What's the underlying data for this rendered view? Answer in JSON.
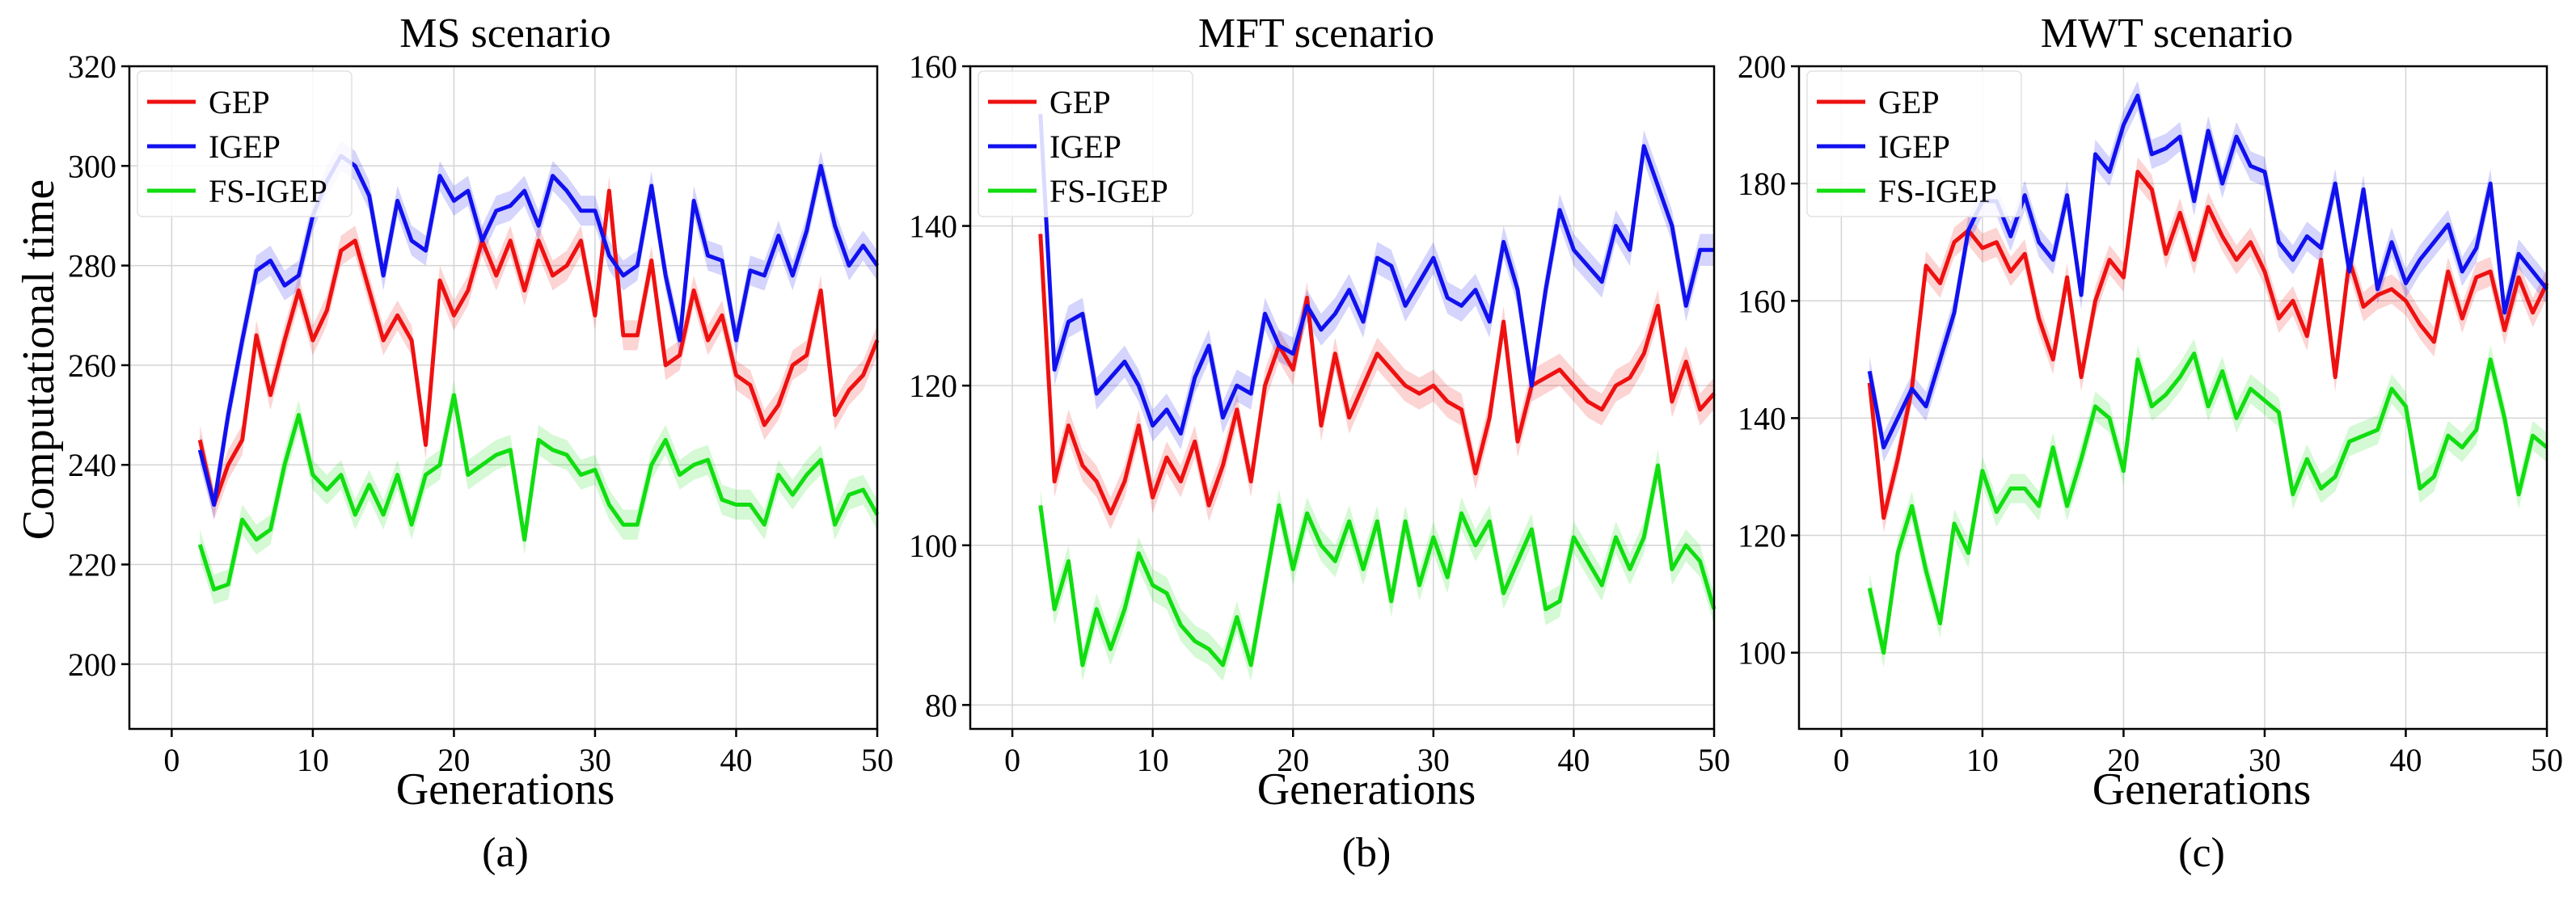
{
  "figure": {
    "ylabel": "Computational time"
  },
  "chart_data": [
    {
      "type": "line",
      "title": "MS scenario",
      "caption": "(a)",
      "xlabel": "Generations",
      "ylabel": "Computational time",
      "xlim": [
        -3,
        50
      ],
      "ylim": [
        187,
        320
      ],
      "xticks": [
        0,
        10,
        20,
        30,
        40,
        50
      ],
      "yticks": [
        200,
        220,
        240,
        260,
        280,
        300,
        320
      ],
      "grid": true,
      "legend_position": "top-left",
      "band_halfwidth": 3,
      "x": [
        2,
        3,
        4,
        5,
        6,
        7,
        8,
        9,
        10,
        11,
        12,
        13,
        14,
        15,
        16,
        17,
        18,
        19,
        20,
        21,
        22,
        23,
        24,
        25,
        26,
        27,
        28,
        29,
        30,
        31,
        32,
        33,
        34,
        35,
        36,
        37,
        38,
        39,
        40,
        41,
        42,
        43,
        44,
        45,
        46,
        47,
        48,
        49,
        50
      ],
      "series": [
        {
          "name": "GEP",
          "color": "#ee1111",
          "values": [
            245,
            232,
            240,
            245,
            266,
            254,
            265,
            275,
            265,
            271,
            283,
            285,
            275,
            265,
            270,
            265,
            244,
            277,
            270,
            275,
            285,
            278,
            285,
            275,
            285,
            278,
            280,
            285,
            270,
            295,
            266,
            266,
            281,
            260,
            262,
            275,
            265,
            270,
            258,
            256,
            248,
            252,
            260,
            262,
            275,
            250,
            255,
            258,
            265
          ]
        },
        {
          "name": "IGEP",
          "color": "#1111ee",
          "values": [
            243,
            232,
            250,
            265,
            279,
            281,
            276,
            278,
            290,
            297,
            302,
            300,
            294,
            278,
            293,
            285,
            283,
            298,
            293,
            295,
            285,
            291,
            292,
            295,
            288,
            298,
            295,
            291,
            291,
            282,
            278,
            280,
            296,
            278,
            265,
            293,
            282,
            281,
            265,
            279,
            278,
            286,
            278,
            287,
            300,
            288,
            280,
            284,
            280
          ]
        },
        {
          "name": "FS-IGEP",
          "color": "#11dd11",
          "values": [
            224,
            215,
            216,
            229,
            225,
            227,
            240,
            250,
            238,
            235,
            238,
            230,
            236,
            230,
            238,
            228,
            238,
            240,
            254,
            238,
            240,
            242,
            243,
            225,
            245,
            243,
            242,
            238,
            239,
            232,
            228,
            228,
            240,
            245,
            238,
            240,
            241,
            233,
            232,
            232,
            228,
            238,
            234,
            238,
            241,
            228,
            234,
            235,
            230
          ]
        }
      ]
    },
    {
      "type": "line",
      "title": "MFT scenario",
      "caption": "(b)",
      "xlabel": "Generations",
      "ylabel": "",
      "xlim": [
        -3,
        50
      ],
      "ylim": [
        77,
        160
      ],
      "xticks": [
        0,
        10,
        20,
        30,
        40,
        50
      ],
      "yticks": [
        80,
        100,
        120,
        140,
        160
      ],
      "grid": true,
      "legend_position": "top-left",
      "band_halfwidth": 2,
      "x": [
        2,
        3,
        4,
        5,
        6,
        7,
        8,
        9,
        10,
        11,
        12,
        13,
        14,
        15,
        16,
        17,
        18,
        19,
        20,
        21,
        22,
        23,
        24,
        25,
        26,
        27,
        28,
        29,
        30,
        31,
        32,
        33,
        34,
        35,
        36,
        37,
        38,
        39,
        40,
        41,
        42,
        43,
        44,
        45,
        46,
        47,
        48,
        49,
        50
      ],
      "series": [
        {
          "name": "GEP",
          "color": "#ee1111",
          "values": [
            139,
            108,
            115,
            110,
            108,
            104,
            108,
            115,
            106,
            111,
            108,
            113,
            105,
            110,
            117,
            108,
            120,
            125,
            122,
            131,
            115,
            124,
            116,
            120,
            124,
            122,
            120,
            119,
            120,
            118,
            117,
            109,
            116,
            128,
            113,
            120,
            121,
            122,
            120,
            118,
            117,
            120,
            121,
            124,
            130,
            118,
            123,
            117,
            119
          ]
        },
        {
          "name": "IGEP",
          "color": "#1111ee",
          "values": [
            154,
            122,
            128,
            129,
            119,
            121,
            123,
            120,
            115,
            117,
            114,
            121,
            125,
            116,
            120,
            119,
            129,
            125,
            124,
            130,
            127,
            129,
            132,
            128,
            136,
            135,
            130,
            133,
            136,
            131,
            130,
            132,
            128,
            138,
            132,
            120,
            132,
            142,
            137,
            135,
            133,
            140,
            137,
            150,
            145,
            140,
            130,
            137,
            137
          ]
        },
        {
          "name": "FS-IGEP",
          "color": "#11dd11",
          "values": [
            105,
            92,
            98,
            85,
            92,
            87,
            92,
            99,
            95,
            94,
            90,
            88,
            87,
            85,
            91,
            85,
            95,
            105,
            97,
            104,
            100,
            98,
            103,
            97,
            103,
            93,
            103,
            95,
            101,
            96,
            104,
            100,
            103,
            94,
            98,
            102,
            92,
            93,
            101,
            98,
            95,
            101,
            97,
            101,
            110,
            97,
            100,
            98,
            92
          ]
        }
      ]
    },
    {
      "type": "line",
      "title": "MWT scenario",
      "caption": "(c)",
      "xlabel": "Generations",
      "ylabel": "",
      "xlim": [
        -3,
        50
      ],
      "ylim": [
        87,
        200
      ],
      "xticks": [
        0,
        10,
        20,
        30,
        40,
        50
      ],
      "yticks": [
        100,
        120,
        140,
        160,
        180,
        200
      ],
      "grid": true,
      "legend_position": "top-left",
      "band_halfwidth": 2.5,
      "x": [
        2,
        3,
        4,
        5,
        6,
        7,
        8,
        9,
        10,
        11,
        12,
        13,
        14,
        15,
        16,
        17,
        18,
        19,
        20,
        21,
        22,
        23,
        24,
        25,
        26,
        27,
        28,
        29,
        30,
        31,
        32,
        33,
        34,
        35,
        36,
        37,
        38,
        39,
        40,
        41,
        42,
        43,
        44,
        45,
        46,
        47,
        48,
        49,
        50
      ],
      "series": [
        {
          "name": "GEP",
          "color": "#ee1111",
          "values": [
            146,
            123,
            133,
            145,
            166,
            163,
            170,
            172,
            169,
            170,
            165,
            168,
            157,
            150,
            164,
            147,
            160,
            167,
            164,
            182,
            179,
            168,
            175,
            167,
            176,
            171,
            167,
            170,
            165,
            157,
            160,
            154,
            167,
            147,
            167,
            159,
            161,
            162,
            160,
            156,
            153,
            165,
            157,
            164,
            165,
            155,
            164,
            158,
            163
          ]
        },
        {
          "name": "IGEP",
          "color": "#1111ee",
          "values": [
            148,
            135,
            140,
            145,
            142,
            150,
            158,
            172,
            177,
            177,
            171,
            178,
            170,
            167,
            178,
            161,
            185,
            182,
            190,
            195,
            185,
            186,
            188,
            177,
            189,
            180,
            188,
            183,
            182,
            170,
            167,
            171,
            169,
            180,
            165,
            179,
            162,
            170,
            163,
            167,
            170,
            173,
            165,
            169,
            180,
            158,
            168,
            165,
            162
          ]
        },
        {
          "name": "FS-IGEP",
          "color": "#11dd11",
          "values": [
            111,
            100,
            117,
            125,
            114,
            105,
            122,
            117,
            131,
            124,
            128,
            128,
            125,
            135,
            125,
            133,
            142,
            140,
            131,
            150,
            142,
            144,
            147,
            151,
            142,
            148,
            140,
            145,
            143,
            141,
            127,
            133,
            128,
            130,
            136,
            137,
            138,
            145,
            142,
            128,
            130,
            137,
            135,
            138,
            150,
            140,
            127,
            137,
            135
          ]
        }
      ]
    }
  ]
}
